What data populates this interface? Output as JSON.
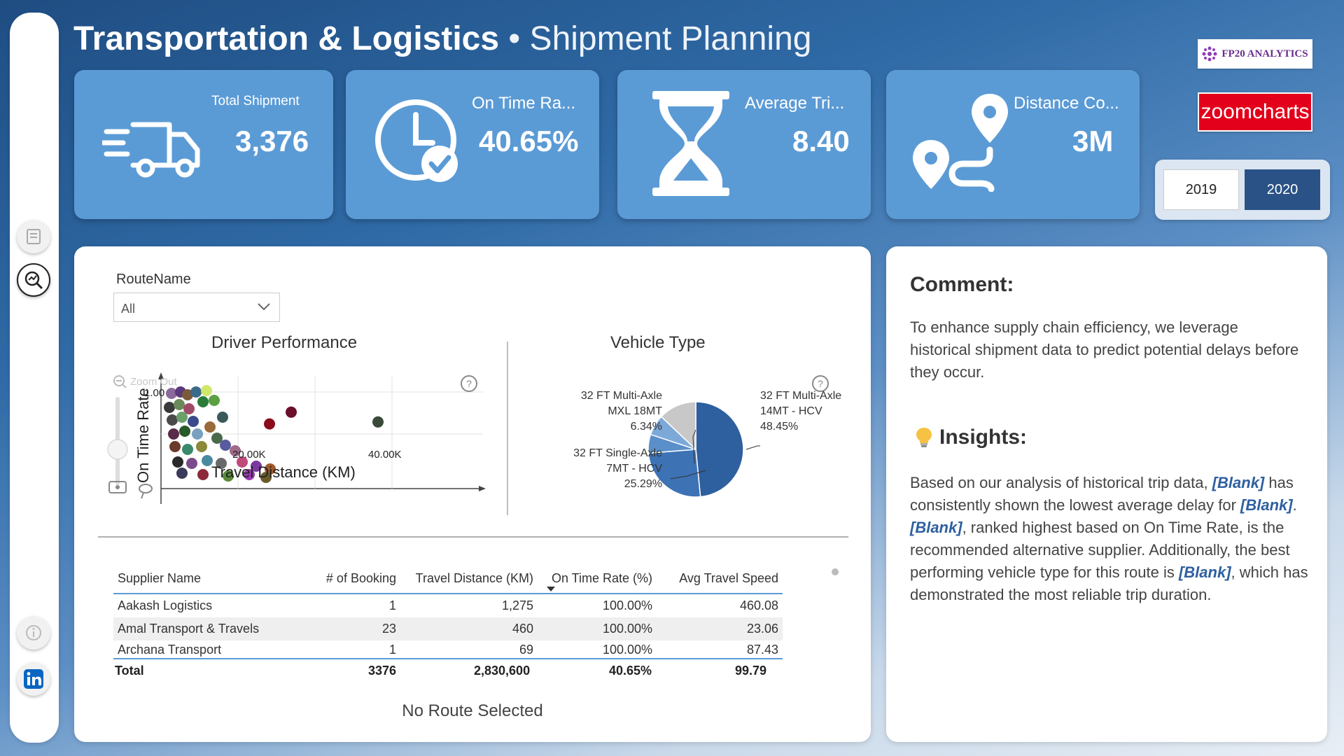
{
  "title": {
    "main": "Transportation & Logistics",
    "sub": "• Shipment Planning"
  },
  "kpis": [
    {
      "label": "Total Shipment",
      "value": "3,376",
      "icon": "truck-icon"
    },
    {
      "label": "On Time Ra...",
      "value": "40.65%",
      "icon": "clock-check-icon"
    },
    {
      "label": "Average Tri...",
      "value": "8.40",
      "icon": "hourglass-icon"
    },
    {
      "label": "Distance Co...",
      "value": "3M",
      "icon": "route-pin-icon"
    }
  ],
  "logos": {
    "fp20": "FP20 ANALYTICS",
    "zoom": "zoomcharts"
  },
  "years": [
    "2019",
    "2020"
  ],
  "selected_year": "2020",
  "slicer": {
    "label": "RouteName",
    "value": "All"
  },
  "charts": {
    "driver": {
      "title": "Driver Performance",
      "zoom_label": "Zoom Out",
      "y_axis_label": "On Time Rate",
      "x_axis_label": "Travel Distance (KM)",
      "y_tick": "1.00",
      "x_tick_a": "20.00K",
      "x_tick_b": "40.00K"
    },
    "vehicle": {
      "title": "Vehicle Type"
    }
  },
  "chart_data": [
    {
      "type": "pie",
      "title": "Vehicle Type",
      "slices": [
        {
          "label_line1": "32 FT Multi-Axle",
          "label_line2": "14MT - HCV",
          "pct_label": "48.45%",
          "value": 48.45,
          "color": "#2e5f9e"
        },
        {
          "label_line1": "32 FT Single-Axle",
          "label_line2": "7MT - HCV",
          "pct_label": "25.29%",
          "value": 25.29,
          "color": "#3d72b4"
        },
        {
          "label_line1": "32 FT Multi-Axle",
          "label_line2": "MXL 18MT",
          "pct_label": "6.34%",
          "value": 6.34,
          "color": "#5b8fca"
        },
        {
          "label_line1": "",
          "label_line2": "",
          "pct_label": "",
          "value": 7.0,
          "color": "#7da9d8"
        },
        {
          "label_line1": "",
          "label_line2": "",
          "pct_label": "",
          "value": 12.92,
          "color": "#c8c8c8"
        }
      ]
    },
    {
      "type": "scatter",
      "title": "Driver Performance",
      "xlabel": "Travel Distance (KM)",
      "ylabel": "On Time Rate",
      "points": [
        {
          "x": 40000,
          "y": 0.68,
          "color": "#3a4a3a"
        },
        {
          "x": 24000,
          "y": 0.78,
          "color": "#6b0f2a"
        },
        {
          "x": 20000,
          "y": 0.66,
          "color": "#8b0d1a"
        }
      ]
    }
  ],
  "table": {
    "headers": [
      "Supplier Name",
      "# of Booking",
      "Travel Distance (KM)",
      "On Time Rate (%)",
      "Avg Travel Speed"
    ],
    "rows": [
      [
        "Aakash Logistics",
        "1",
        "1,275",
        "100.00%",
        "460.08"
      ],
      [
        "Amal Transport & Travels",
        "23",
        "460",
        "100.00%",
        "23.06"
      ],
      [
        "Archana Transport",
        "1",
        "69",
        "100.00%",
        "87.43"
      ]
    ],
    "total": [
      "Total",
      "3376",
      "2,830,600",
      "40.65%",
      "99.79"
    ]
  },
  "no_route": "No Route Selected",
  "comment": {
    "title": "Comment:",
    "body": "To enhance supply chain efficiency, we leverage historical shipment data to predict potential delays before they occur."
  },
  "insights": {
    "title": "Insights:",
    "p1": "Based on our analysis of historical trip data, ",
    "b1": "[Blank]",
    "p2": " has consistently shown the lowest average delay for ",
    "b2": "[Blank]",
    "p3": ". ",
    "b3": "[Blank]",
    "p4": ", ranked highest based on On Time Rate, is the recommended alternative supplier. Additionally, the best performing vehicle type for this route is ",
    "b4": "[Blank]",
    "p5": ", which has demonstrated the most reliable trip duration."
  }
}
